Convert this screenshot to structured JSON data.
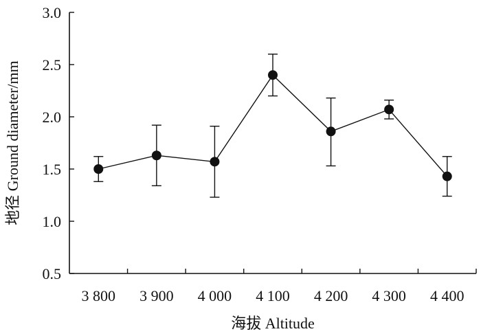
{
  "chart_data": {
    "type": "line",
    "title": "",
    "xlabel": "海拔 Altitude",
    "ylabel": "地径 Ground diameter/mm",
    "categories": [
      "3 800",
      "3 900",
      "4 000",
      "4 100",
      "4 200",
      "4 300",
      "4 400"
    ],
    "series": [
      {
        "values": [
          1.5,
          1.63,
          1.57,
          2.4,
          1.86,
          2.07,
          1.43
        ],
        "err_low": [
          1.38,
          1.34,
          1.23,
          2.2,
          1.53,
          1.98,
          1.24
        ],
        "err_high": [
          1.62,
          1.92,
          1.91,
          2.6,
          2.18,
          2.16,
          1.62
        ],
        "marker": "circle",
        "color": "#111111"
      }
    ],
    "ylim": [
      0.5,
      3.0
    ],
    "yticks": [
      0.5,
      1.0,
      1.5,
      2.0,
      2.5,
      3.0
    ],
    "ytick_labels": [
      "0.5",
      "1.0",
      "1.5",
      "2.0",
      "2.5",
      "3.0"
    ],
    "grid": false,
    "legend": "none"
  }
}
